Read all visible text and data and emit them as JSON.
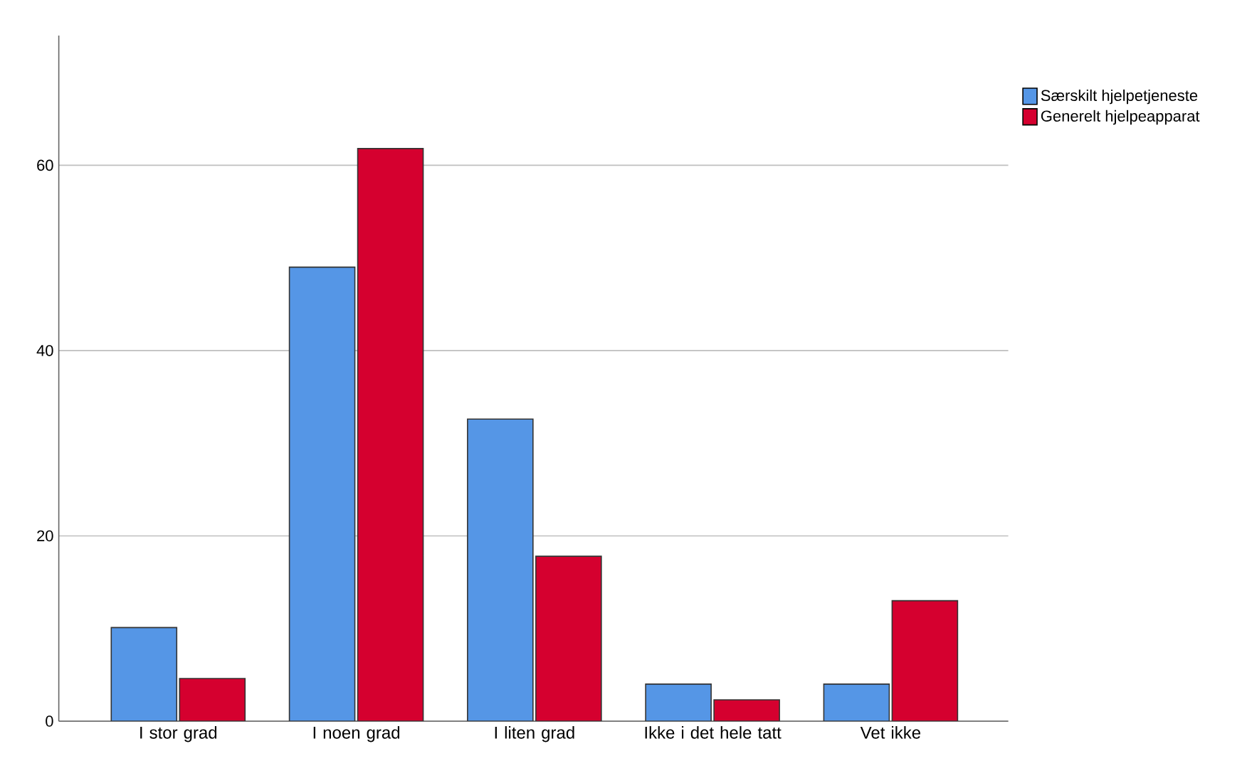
{
  "chart_data": {
    "type": "bar",
    "categories": [
      "I stor grad",
      "I noen grad",
      "I liten grad",
      "Ikke i det hele tatt",
      "Vet ikke"
    ],
    "series": [
      {
        "name": "Særskilt hjelpetjeneste",
        "color": "#5596e6",
        "values": [
          10.1,
          49.0,
          32.6,
          4.0,
          4.0
        ]
      },
      {
        "name": "Generelt hjelpeapparat",
        "color": "#d5002f",
        "values": [
          4.6,
          61.8,
          17.8,
          2.3,
          13.0
        ]
      }
    ],
    "ylim": [
      0,
      74
    ],
    "yticks": [
      0,
      20,
      40,
      60
    ],
    "grid": "y",
    "legend": "top right"
  }
}
